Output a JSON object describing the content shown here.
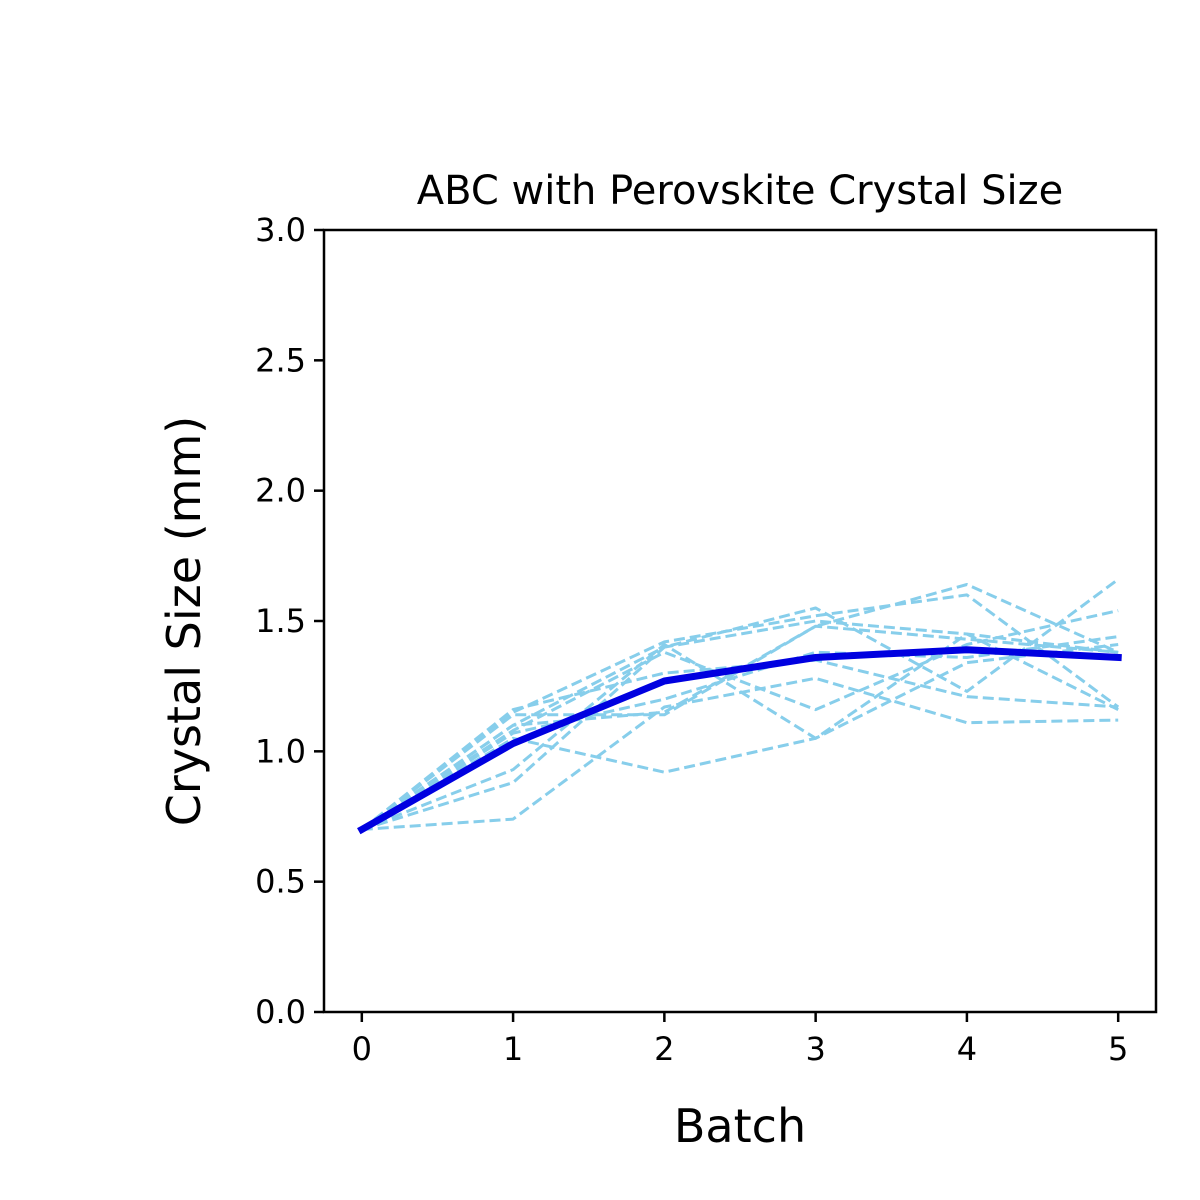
{
  "chart_data": {
    "type": "line",
    "title": "ABC with Perovskite Crystal Size",
    "xlabel": "Batch",
    "ylabel": "Crystal Size (mm)",
    "xlim": [
      -0.25,
      5.25
    ],
    "ylim": [
      0.0,
      3.0
    ],
    "xticks": [
      0,
      1,
      2,
      3,
      4,
      5
    ],
    "xtick_labels": [
      "0",
      "1",
      "2",
      "3",
      "4",
      "5"
    ],
    "yticks": [
      0.0,
      0.5,
      1.0,
      1.5,
      2.0,
      2.5,
      3.0
    ],
    "ytick_labels": [
      "0.0",
      "0.5",
      "1.0",
      "1.5",
      "2.0",
      "2.5",
      "3.0"
    ],
    "grid": false,
    "x": [
      0,
      1,
      2,
      3,
      4,
      5
    ],
    "series": [
      {
        "style": "dashed",
        "color": "#87ceeb",
        "values": [
          0.7,
          0.74,
          1.17,
          1.28,
          1.11,
          1.12
        ]
      },
      {
        "style": "dashed",
        "color": "#87ceeb",
        "values": [
          0.7,
          0.88,
          1.4,
          1.55,
          1.23,
          1.66
        ]
      },
      {
        "style": "dashed",
        "color": "#87ceeb",
        "values": [
          0.7,
          0.93,
          1.41,
          1.05,
          1.45,
          1.16
        ]
      },
      {
        "style": "dashed",
        "color": "#87ceeb",
        "values": [
          0.7,
          1.05,
          0.92,
          1.05,
          1.34,
          1.41
        ]
      },
      {
        "style": "dashed",
        "color": "#87ceeb",
        "values": [
          0.7,
          1.1,
          1.15,
          1.48,
          1.64,
          1.38
        ]
      },
      {
        "style": "dashed",
        "color": "#87ceeb",
        "values": [
          0.7,
          1.15,
          1.42,
          1.52,
          1.6,
          1.17
        ]
      },
      {
        "style": "dashed",
        "color": "#87ceeb",
        "values": [
          0.7,
          1.16,
          1.3,
          1.35,
          1.21,
          1.17
        ]
      },
      {
        "style": "dashed",
        "color": "#87ceeb",
        "values": [
          0.7,
          1.14,
          1.14,
          1.48,
          1.43,
          1.38
        ]
      },
      {
        "style": "dashed",
        "color": "#87ceeb",
        "values": [
          0.7,
          1.08,
          1.38,
          1.16,
          1.41,
          1.54
        ]
      },
      {
        "style": "dashed",
        "color": "#87ceeb",
        "values": [
          0.7,
          1.1,
          1.4,
          1.5,
          1.45,
          1.38
        ]
      },
      {
        "style": "dashed",
        "color": "#87ceeb",
        "values": [
          0.7,
          1.07,
          1.2,
          1.38,
          1.36,
          1.44
        ]
      },
      {
        "style": "solid",
        "color": "#0000e0",
        "values": [
          0.7,
          1.03,
          1.27,
          1.36,
          1.39,
          1.36
        ]
      }
    ]
  }
}
